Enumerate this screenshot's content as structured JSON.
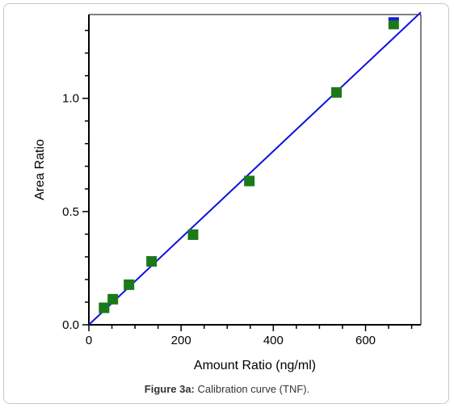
{
  "caption": {
    "figure_label": "Figure 3a:",
    "text": "Calibration curve (TNF)."
  },
  "chart_data": {
    "type": "scatter",
    "xlabel": "Amount Ratio (ng/ml)",
    "ylabel": "Area Ratio",
    "xlim": [
      0,
      720
    ],
    "ylim": [
      0,
      1.37
    ],
    "x_ticks": [
      0,
      200,
      400,
      600
    ],
    "x_tick_labels": [
      "0",
      "200",
      "400",
      "600"
    ],
    "y_ticks": [
      0,
      0.5,
      1.0
    ],
    "y_tick_labels": [
      "0.0",
      "0.5",
      "1.0"
    ],
    "grid": false,
    "series": [
      {
        "kind": "points",
        "color": "#1a7a1a",
        "x": [
          33,
          52,
          87,
          136,
          226,
          348,
          537,
          661
        ],
        "y": [
          0.075,
          0.113,
          0.177,
          0.28,
          0.398,
          0.635,
          1.026,
          1.328
        ]
      },
      {
        "kind": "fit-line",
        "color": "#1010e0",
        "x": [
          0,
          720
        ],
        "y": [
          0.0,
          1.38
        ]
      }
    ],
    "colors": {
      "axis": "#000000",
      "points": "#1a7a1a",
      "line": "#1010e0",
      "point_top_accent": "#1a1adc"
    }
  }
}
